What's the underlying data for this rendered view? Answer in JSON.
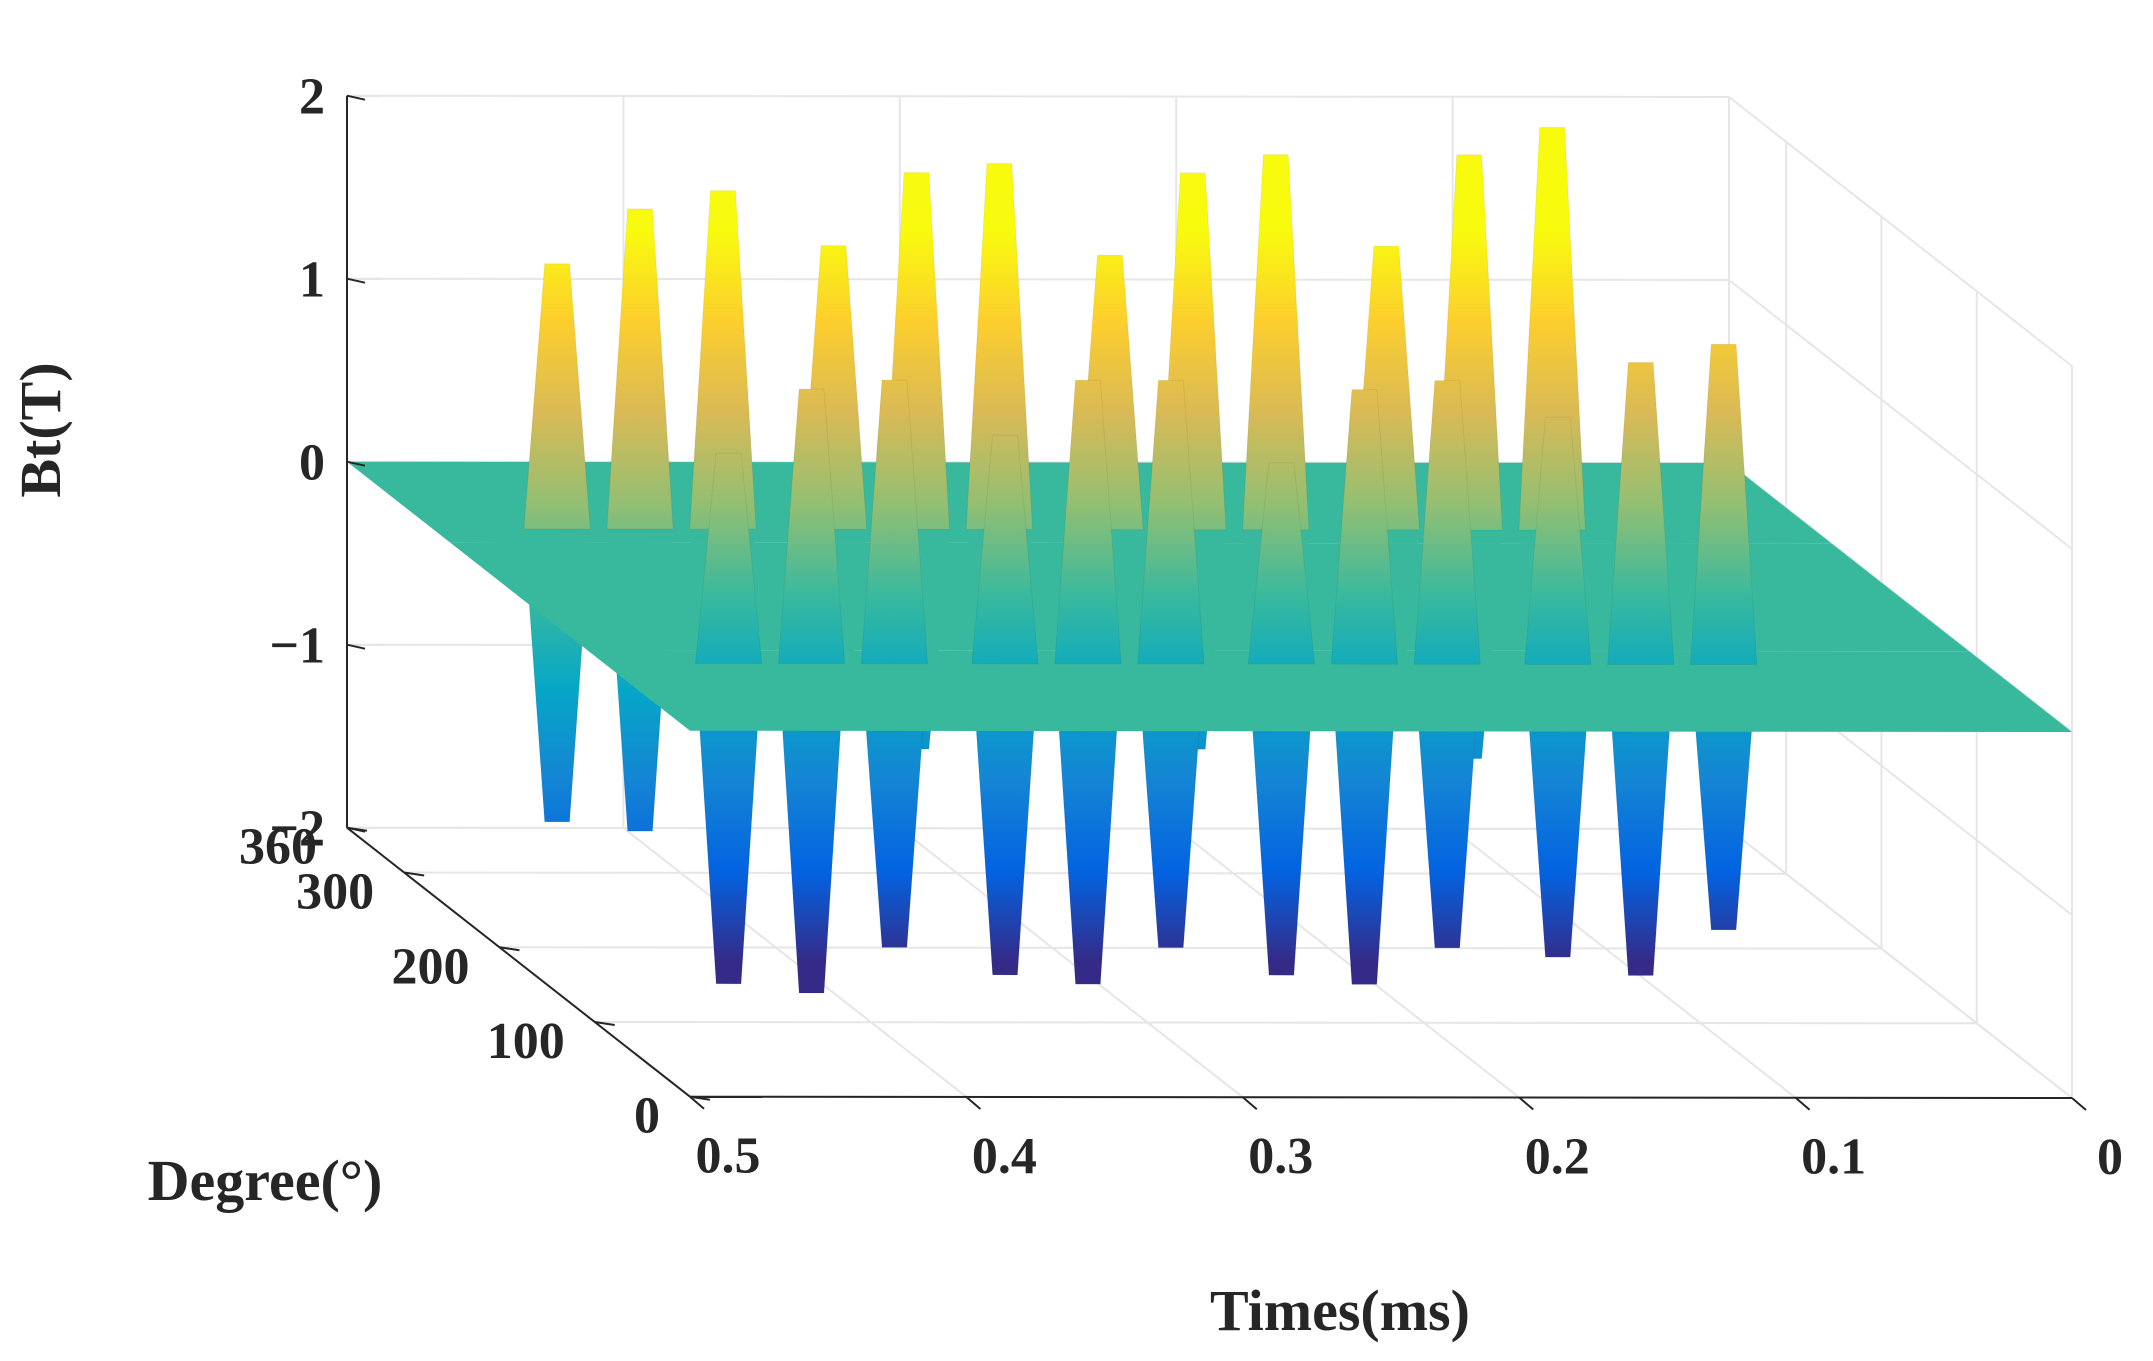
{
  "chart_data": {
    "type": "surface",
    "title": "",
    "xlabel": "Times(ms)",
    "ylabel": "Degree(°)",
    "zlabel": "Bt(T)",
    "xlim": [
      0,
      0.5
    ],
    "ylim": [
      0,
      360
    ],
    "zlim": [
      -2,
      2
    ],
    "x_ticks": [
      "0",
      "0.1",
      "0.2",
      "0.3",
      "0.4",
      "0.5"
    ],
    "y_ticks": [
      "0",
      "100",
      "200",
      "300",
      "360"
    ],
    "z_ticks": [
      "−2",
      "−1",
      "0",
      "1",
      "2"
    ],
    "x_tick_values": [
      0,
      0.1,
      0.2,
      0.3,
      0.4,
      0.5
    ],
    "y_tick_values": [
      0,
      100,
      200,
      300,
      360
    ],
    "z_tick_values": [
      -2,
      -1,
      0,
      1,
      2
    ],
    "grid": true,
    "colormap": "parula",
    "colormap_colors": [
      "#352a87",
      "#0363e1",
      "#1485d4",
      "#06a7c6",
      "#38b99e",
      "#92bf73",
      "#d9ba56",
      "#fcce2e",
      "#f9fb0e"
    ],
    "baseline_value": 0,
    "peak_rows_degree": [
      270,
      90
    ],
    "positive_peaks": [
      {
        "time_ms": 0.455,
        "degree": 270,
        "value": 1.45
      },
      {
        "time_ms": 0.425,
        "degree": 270,
        "value": 1.75
      },
      {
        "time_ms": 0.395,
        "degree": 270,
        "value": 1.85
      },
      {
        "time_ms": 0.355,
        "degree": 270,
        "value": 1.55
      },
      {
        "time_ms": 0.325,
        "degree": 270,
        "value": 1.95
      },
      {
        "time_ms": 0.295,
        "degree": 270,
        "value": 2.0
      },
      {
        "time_ms": 0.255,
        "degree": 270,
        "value": 1.5
      },
      {
        "time_ms": 0.225,
        "degree": 270,
        "value": 1.95
      },
      {
        "time_ms": 0.195,
        "degree": 270,
        "value": 2.05
      },
      {
        "time_ms": 0.155,
        "degree": 270,
        "value": 1.55
      },
      {
        "time_ms": 0.125,
        "degree": 270,
        "value": 2.05
      },
      {
        "time_ms": 0.095,
        "degree": 270,
        "value": 2.2
      },
      {
        "time_ms": 0.455,
        "degree": 90,
        "value": 1.15
      },
      {
        "time_ms": 0.425,
        "degree": 90,
        "value": 1.5
      },
      {
        "time_ms": 0.395,
        "degree": 90,
        "value": 1.55
      },
      {
        "time_ms": 0.355,
        "degree": 90,
        "value": 1.25
      },
      {
        "time_ms": 0.325,
        "degree": 90,
        "value": 1.55
      },
      {
        "time_ms": 0.295,
        "degree": 90,
        "value": 1.55
      },
      {
        "time_ms": 0.255,
        "degree": 90,
        "value": 1.1
      },
      {
        "time_ms": 0.225,
        "degree": 90,
        "value": 1.5
      },
      {
        "time_ms": 0.195,
        "degree": 90,
        "value": 1.55
      },
      {
        "time_ms": 0.155,
        "degree": 90,
        "value": 1.35
      },
      {
        "time_ms": 0.125,
        "degree": 90,
        "value": 1.65
      },
      {
        "time_ms": 0.095,
        "degree": 90,
        "value": 1.75
      }
    ],
    "negative_troughs": [
      {
        "time_ms": 0.455,
        "degree": 270,
        "value": -1.6
      },
      {
        "time_ms": 0.425,
        "degree": 270,
        "value": -1.65
      },
      {
        "time_ms": 0.395,
        "degree": 270,
        "value": -1.4
      },
      {
        "time_ms": 0.355,
        "degree": 270,
        "value": -1.1
      },
      {
        "time_ms": 0.325,
        "degree": 270,
        "value": -1.2
      },
      {
        "time_ms": 0.295,
        "degree": 270,
        "value": -1.0
      },
      {
        "time_ms": 0.255,
        "degree": 270,
        "value": -1.1
      },
      {
        "time_ms": 0.225,
        "degree": 270,
        "value": -1.2
      },
      {
        "time_ms": 0.195,
        "degree": 270,
        "value": -1.0
      },
      {
        "time_ms": 0.155,
        "degree": 270,
        "value": -1.1
      },
      {
        "time_ms": 0.125,
        "degree": 270,
        "value": -1.25
      },
      {
        "time_ms": 0.095,
        "degree": 270,
        "value": -1.05
      },
      {
        "time_ms": 0.455,
        "degree": 90,
        "value": -1.75
      },
      {
        "time_ms": 0.425,
        "degree": 90,
        "value": -1.8
      },
      {
        "time_ms": 0.395,
        "degree": 90,
        "value": -1.55
      },
      {
        "time_ms": 0.355,
        "degree": 90,
        "value": -1.7
      },
      {
        "time_ms": 0.325,
        "degree": 90,
        "value": -1.75
      },
      {
        "time_ms": 0.295,
        "degree": 90,
        "value": -1.55
      },
      {
        "time_ms": 0.255,
        "degree": 90,
        "value": -1.7
      },
      {
        "time_ms": 0.225,
        "degree": 90,
        "value": -1.75
      },
      {
        "time_ms": 0.195,
        "degree": 90,
        "value": -1.55
      },
      {
        "time_ms": 0.155,
        "degree": 90,
        "value": -1.6
      },
      {
        "time_ms": 0.125,
        "degree": 90,
        "value": -1.7
      },
      {
        "time_ms": 0.095,
        "degree": 90,
        "value": -1.45
      }
    ]
  }
}
